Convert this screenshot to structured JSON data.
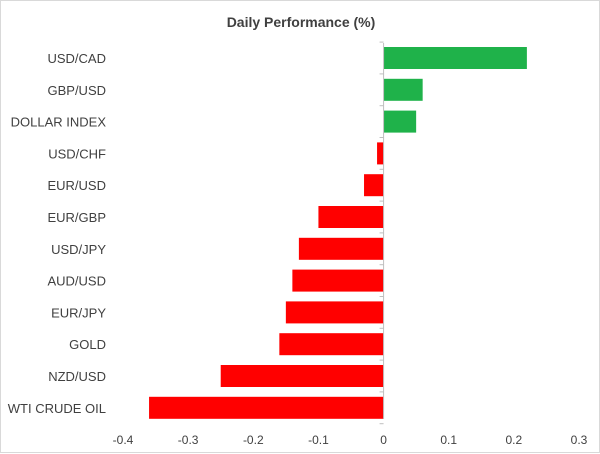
{
  "chart_data": {
    "type": "bar",
    "orientation": "horizontal",
    "title": "Daily Performance (%)",
    "categories": [
      "USD/CAD",
      "GBP/USD",
      "DOLLAR INDEX",
      "USD/CHF",
      "EUR/USD",
      "EUR/GBP",
      "USD/JPY",
      "AUD/USD",
      "EUR/JPY",
      "GOLD",
      "NZD/USD",
      "WTI CRUDE OIL"
    ],
    "values": [
      0.22,
      0.06,
      0.05,
      -0.01,
      -0.03,
      -0.1,
      -0.13,
      -0.14,
      -0.15,
      -0.16,
      -0.25,
      -0.36
    ],
    "xlim": [
      -0.4,
      0.3
    ],
    "xticks": [
      -0.4,
      -0.3,
      -0.2,
      -0.1,
      0,
      0.1,
      0.2,
      0.3
    ],
    "xtick_labels": [
      "-0.4",
      "-0.3",
      "-0.2",
      "-0.1",
      "0",
      "0.1",
      "0.2",
      "0.3"
    ],
    "grid": false,
    "legend": "none",
    "colors": {
      "positive": "#1fb24a",
      "negative": "#ff0000",
      "axis": "#bfbfbf",
      "text": "#404040"
    }
  }
}
